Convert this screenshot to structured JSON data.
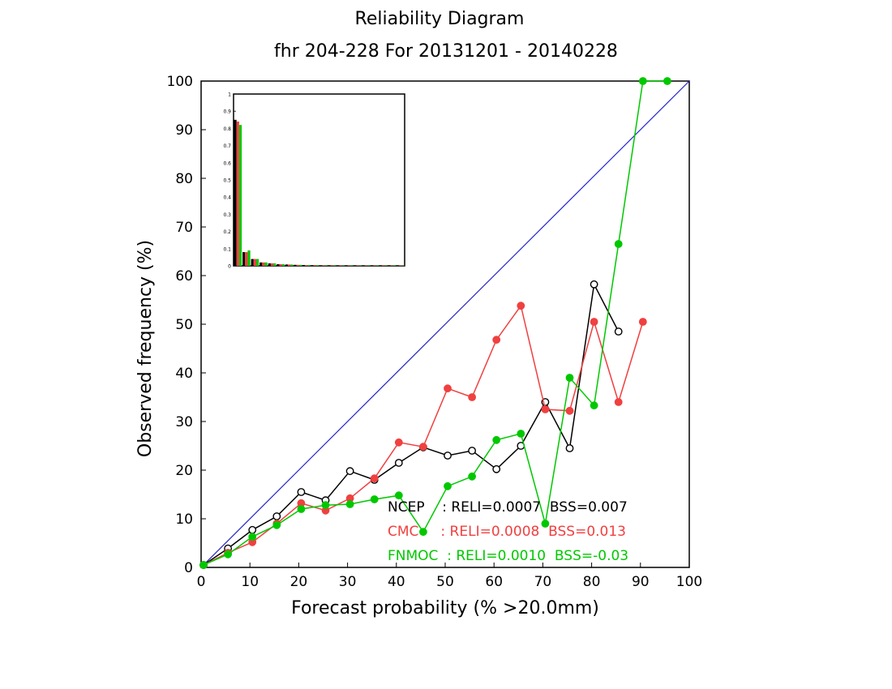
{
  "chart_data": {
    "type": "line",
    "title": "Reliability Diagram",
    "subtitle": "fhr 204-228 For 20131201 - 20140228",
    "xlabel": "Forecast probability (% >20.0mm)",
    "ylabel": "Observed frequency (%)",
    "xlim": [
      0,
      100
    ],
    "ylim": [
      0,
      100
    ],
    "xticks": [
      "0",
      "10",
      "20",
      "30",
      "40",
      "50",
      "60",
      "70",
      "80",
      "90",
      "100"
    ],
    "yticks": [
      "0",
      "10",
      "20",
      "30",
      "40",
      "50",
      "60",
      "70",
      "80",
      "90",
      "100"
    ],
    "diagonal_color": "#2323c8",
    "series": [
      {
        "name": "NCEP",
        "color": "#000000",
        "marker": "open-circle",
        "legend_text": "NCEP    : RELI=0.0007  BSS=0.007",
        "x": [
          0.5,
          5.5,
          10.5,
          15.5,
          20.5,
          25.5,
          30.5,
          35.5,
          40.5,
          45.5,
          50.5,
          55.5,
          60.5,
          65.5,
          70.5,
          75.5,
          80.5,
          85.5
        ],
        "y": [
          0.5,
          3.9,
          7.7,
          10.5,
          15.5,
          13.8,
          19.8,
          18.0,
          21.5,
          24.7,
          23.0,
          24.0,
          20.2,
          25.0,
          34.0,
          24.5,
          58.2,
          48.5
        ]
      },
      {
        "name": "CMC",
        "color": "#f04040",
        "marker": "filled-circle",
        "legend_text": "CMC     : RELI=0.0008  BSS=0.013",
        "x": [
          0.5,
          5.5,
          10.5,
          15.5,
          20.5,
          25.5,
          30.5,
          35.5,
          40.5,
          45.5,
          50.5,
          55.5,
          60.5,
          65.5,
          70.5,
          75.5,
          80.5,
          85.5,
          90.5
        ],
        "y": [
          0.5,
          3.0,
          5.2,
          9.0,
          13.2,
          11.7,
          14.2,
          18.3,
          25.7,
          24.8,
          36.8,
          35.0,
          46.8,
          53.8,
          32.5,
          32.2,
          50.5,
          34.0,
          50.5
        ]
      },
      {
        "name": "FNMOC",
        "color": "#00c800",
        "marker": "filled-circle",
        "legend_text": "FNMOC  : RELI=0.0010  BSS=-0.03",
        "x": [
          0.5,
          5.5,
          10.5,
          15.5,
          20.5,
          25.5,
          30.5,
          35.5,
          40.5,
          45.5,
          50.5,
          55.5,
          60.5,
          65.5,
          70.5,
          75.5,
          80.5,
          85.5,
          90.5,
          95.5
        ],
        "y": [
          0.5,
          2.7,
          6.3,
          8.7,
          12.0,
          12.8,
          13.0,
          14.0,
          14.8,
          7.3,
          16.7,
          18.7,
          26.2,
          27.5,
          9.0,
          39.0,
          33.3,
          66.5,
          100.0,
          100.0
        ]
      }
    ],
    "inset": {
      "type": "bar",
      "description_values_are_frequencies": true,
      "ylim": [
        0,
        1
      ],
      "yticks": [
        "0",
        "0.1",
        "0.2",
        "0.3",
        "0.4",
        "0.5",
        "0.6",
        "0.7",
        "0.8",
        "0.9",
        "1"
      ],
      "bins": 20,
      "series": [
        {
          "name": "NCEP",
          "color": "#000000",
          "values": [
            0.85,
            0.08,
            0.04,
            0.02,
            0.015,
            0.01,
            0.008,
            0.006,
            0.005,
            0.004,
            0.003,
            0.003,
            0.002,
            0.002,
            0.0015,
            0.001,
            0.001,
            0.0008,
            0.0,
            0.0
          ]
        },
        {
          "name": "CMC",
          "color": "#f04040",
          "values": [
            0.84,
            0.08,
            0.04,
            0.02,
            0.015,
            0.01,
            0.008,
            0.006,
            0.005,
            0.004,
            0.003,
            0.003,
            0.002,
            0.002,
            0.0015,
            0.001,
            0.001,
            0.0008,
            0.0006,
            0.0
          ]
        },
        {
          "name": "FNMOC",
          "color": "#00c800",
          "values": [
            0.82,
            0.09,
            0.04,
            0.02,
            0.015,
            0.01,
            0.008,
            0.006,
            0.005,
            0.004,
            0.003,
            0.003,
            0.002,
            0.002,
            0.0015,
            0.001,
            0.001,
            0.0008,
            0.0006,
            0.0005
          ]
        }
      ]
    }
  }
}
